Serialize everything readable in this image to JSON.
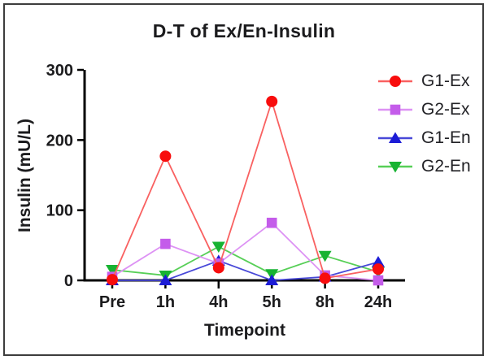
{
  "chart_data": {
    "type": "line",
    "title": "D-T of Ex/En-Insulin",
    "xlabel": "Timepoint",
    "ylabel": "Insulin（mU/L）",
    "categories": [
      "Pre",
      "1h",
      "4h",
      "5h",
      "8h",
      "24h"
    ],
    "yticks": [
      0,
      100,
      200,
      300
    ],
    "ylim": [
      0,
      300
    ],
    "grid": false,
    "legend_position": "top-right",
    "axis_color": "#000000",
    "series": [
      {
        "name": "G1-Ex",
        "marker": "circle",
        "color": "#f80d0d",
        "line_color": "#f96161",
        "values": [
          1,
          177,
          18,
          255,
          3,
          16
        ]
      },
      {
        "name": "G2-Ex",
        "marker": "square",
        "color": "#c45cea",
        "line_color": "#dd92f4",
        "values": [
          5,
          52,
          24,
          82,
          7,
          0
        ]
      },
      {
        "name": "G1-En",
        "marker": "triangle-up",
        "color": "#1c1cd6",
        "line_color": "#4848d8",
        "values": [
          0,
          0,
          28,
          0,
          5,
          26
        ]
      },
      {
        "name": "G2-En",
        "marker": "triangle-down",
        "color": "#17b332",
        "line_color": "#57cf57",
        "values": [
          15,
          7,
          48,
          9,
          35,
          12
        ]
      }
    ]
  }
}
